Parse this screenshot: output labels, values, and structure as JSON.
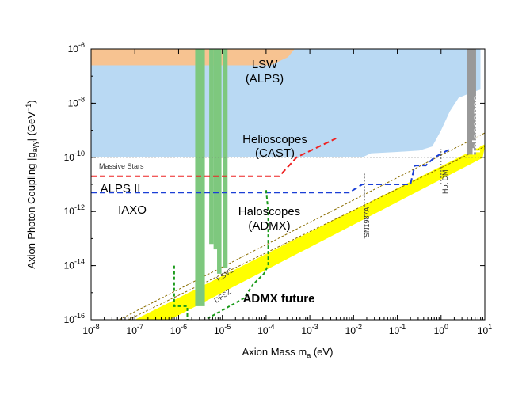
{
  "chart_data": {
    "type": "area",
    "xlabel": "Axion Mass m",
    "xlabel_sub": "a",
    "xlabel_unit": " (eV)",
    "ylabel_pre": "Axion-Photon Coupling |g",
    "ylabel_sub": "aγγ",
    "ylabel_post": "| (GeV",
    "ylabel_sup": "−1",
    "ylabel_end": ")",
    "xscale": "log",
    "yscale": "log",
    "xlim_exp": [
      -8,
      1
    ],
    "ylim_exp": [
      -16,
      -6
    ],
    "xticks_exp": [
      -8,
      -7,
      -6,
      -5,
      -4,
      -3,
      -2,
      -1,
      0,
      1
    ],
    "yticks_exp": [
      -16,
      -14,
      -12,
      -10,
      -8,
      -6
    ],
    "tick_base": "10",
    "colors": {
      "helioscopes": "#b9d9f3",
      "lsw": "#f7c391",
      "haloscopes": "#7ec87e",
      "axion_band": "#ffff00",
      "telescopes": "#999999",
      "alps2": "#ee2222",
      "iaxo": "#1a3fd6",
      "admx_future": "#1a9a1a"
    },
    "regions": {
      "helioscopes": {
        "label_line1": "Helioscopes",
        "label_line2": "(CAST)",
        "upper": [
          [
            -8,
            -6
          ],
          [
            0.9,
            -6
          ]
        ],
        "lower": [
          [
            -8,
            -10
          ],
          [
            -1.8,
            -10
          ],
          [
            -1.6,
            -9.85
          ],
          [
            -1.0,
            -9.8
          ],
          [
            -0.5,
            -9.75
          ],
          [
            -0.2,
            -9.6
          ],
          [
            0.0,
            -9.0
          ],
          [
            0.2,
            -8.3
          ],
          [
            0.4,
            -7.8
          ],
          [
            0.7,
            -7.6
          ],
          [
            0.9,
            -7.5
          ]
        ]
      },
      "lsw": {
        "label_line1": "LSW",
        "label_line2": "(ALPS)",
        "points": [
          [
            -8,
            -6
          ],
          [
            -3.35,
            -6
          ],
          [
            -3.5,
            -6.3
          ],
          [
            -3.9,
            -6.6
          ],
          [
            -4.2,
            -6.6
          ],
          [
            -4.2,
            -6.6
          ],
          [
            -8,
            -6.6
          ]
        ]
      },
      "haloscopes": {
        "label_line1": "Haloscopes",
        "label_line2": "(ADMX)",
        "bars": [
          {
            "x0": -5.62,
            "x1": -5.4,
            "ytop": -6,
            "ybot": -15.5
          },
          {
            "x0": -5.3,
            "x1": -5.2,
            "ytop": -6,
            "ybot": -13.2
          },
          {
            "x0": -5.2,
            "x1": -5.1,
            "ytop": -6,
            "ybot": -13.4
          },
          {
            "x0": -5.12,
            "x1": -5.02,
            "ytop": -6,
            "ybot": -14.3
          },
          {
            "x0": -4.98,
            "x1": -4.88,
            "ytop": -6,
            "ybot": -14.1
          }
        ],
        "bar_points": [
          [
            -5.62,
            -15.5
          ],
          [
            -5.62,
            -6.0
          ],
          [
            -5.45,
            -6.0
          ],
          [
            -5.43,
            -15.4
          ],
          [
            -5.3,
            -15.3
          ],
          [
            -5.28,
            -6.0
          ],
          [
            -5.2,
            -6.0
          ],
          [
            -5.18,
            -13.0
          ],
          [
            -5.14,
            -13.3
          ],
          [
            -5.12,
            -6.0
          ],
          [
            -5.04,
            -6.0
          ],
          [
            -5.02,
            -14.0
          ],
          [
            -4.98,
            -14.0
          ],
          [
            -4.97,
            -6.0
          ],
          [
            -4.88,
            -6.0
          ],
          [
            -4.86,
            -14.0
          ],
          [
            -4.95,
            -14.3
          ],
          [
            -5.06,
            -14.3
          ],
          [
            -5.06,
            -15.4
          ],
          [
            -5.4,
            -15.4
          ]
        ]
      },
      "axion_band": {
        "points": [
          [
            -7.0,
            -16.0
          ],
          [
            -6.2,
            -16.0
          ],
          [
            0.95,
            -10.02
          ],
          [
            1.0,
            -9.62
          ],
          [
            1.0,
            -9.52
          ],
          [
            -7.0,
            -16.0
          ]
        ],
        "ksvz": [
          [
            -7.6,
            -16.2
          ],
          [
            1.0,
            -9.1
          ]
        ],
        "dfsz": [
          [
            -7.4,
            -16.2
          ],
          [
            1.0,
            -9.6
          ]
        ],
        "ksvz_label": "KSVZ",
        "dfsz_label": "DFSZ"
      },
      "telescopes": {
        "label": "Telescopes",
        "x0": 0.6,
        "x1": 0.8,
        "ytop": -6.0,
        "ybot": -9.9
      }
    },
    "lines": {
      "massive_stars": {
        "label": "Massive Stars",
        "y": -10.0,
        "x0": -8,
        "x1": 1
      },
      "alps2": {
        "label": "ALPS II",
        "points": [
          [
            -8,
            -10.7
          ],
          [
            -3.7,
            -10.7
          ],
          [
            -3.3,
            -10.0
          ],
          [
            -2.4,
            -9.3
          ]
        ]
      },
      "iaxo": {
        "label": "IAXO",
        "points": [
          [
            -8,
            -11.3
          ],
          [
            -2.1,
            -11.3
          ],
          [
            -1.8,
            -11.0
          ],
          [
            -1.2,
            -11.0
          ],
          [
            -0.7,
            -11.0
          ],
          [
            -0.6,
            -10.3
          ],
          [
            -0.35,
            -10.3
          ],
          [
            -0.15,
            -10.0
          ],
          [
            0.2,
            -9.7
          ]
        ]
      },
      "admx_future": {
        "label": "ADMX future",
        "points": [
          [
            -6.1,
            -14.0
          ],
          [
            -6.1,
            -15.5
          ],
          [
            -5.8,
            -15.5
          ],
          [
            -5.8,
            -16.0
          ],
          [
            -5.5,
            -16.1
          ],
          [
            -4.5,
            -15.2
          ],
          [
            -4.3,
            -14.7
          ],
          [
            -4.05,
            -14.3
          ],
          [
            -3.95,
            -14.0
          ],
          [
            -3.95,
            -12.0
          ],
          [
            -4.0,
            -11.2
          ]
        ]
      },
      "sn1987a": {
        "label": "SN1987A",
        "x": -1.75,
        "y0": -13.0,
        "y1": -10.6
      },
      "hot_dm": {
        "label": "Hot DM",
        "x": 0.0,
        "y0": -11.0,
        "y1": -9.7
      }
    }
  }
}
